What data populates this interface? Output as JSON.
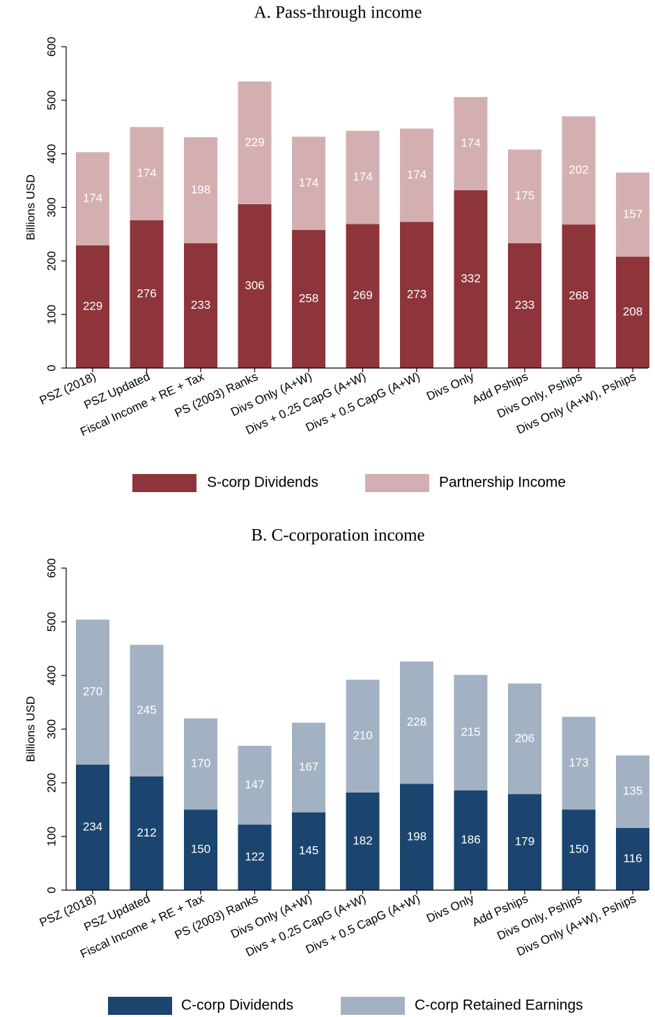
{
  "chart_data": [
    {
      "type": "bar",
      "stacked": true,
      "title": "A. Pass-through income",
      "y_label": "Billions USD",
      "categories": [
        "PSZ (2018)",
        "PSZ Updated",
        "Fiscal Income + RE + Tax",
        "PS (2003) Ranks",
        "Divs Only (A+W)",
        "Divs + 0.25 CapG (A+W)",
        "Divs + 0.5 CapG (A+W)",
        "Divs Only",
        "Add Pships",
        "Divs Only, Pships",
        "Divs Only (A+W), Pships"
      ],
      "series": [
        {
          "name": "S-corp Dividends",
          "color": "#8e353b",
          "values": [
            229,
            276,
            233,
            306,
            258,
            269,
            273,
            332,
            233,
            268,
            208
          ]
        },
        {
          "name": "Partnership Income",
          "color": "#d4afb1",
          "values": [
            174,
            174,
            198,
            229,
            174,
            174,
            174,
            174,
            175,
            202,
            157
          ]
        }
      ],
      "ylim": [
        0,
        600
      ],
      "yticks": [
        0,
        100,
        200,
        300,
        400,
        500,
        600
      ]
    },
    {
      "type": "bar",
      "stacked": true,
      "title": "B. C-corporation income",
      "y_label": "Billions USD",
      "categories": [
        "PSZ (2018)",
        "PSZ Updated",
        "Fiscal Income + RE + Tax",
        "PS (2003) Ranks",
        "Divs Only (A+W)",
        "Divs + 0.25 CapG (A+W)",
        "Divs + 0.5 CapG (A+W)",
        "Divs Only",
        "Add Pships",
        "Divs Only, Pships",
        "Divs Only (A+W), Pships"
      ],
      "series": [
        {
          "name": "C-corp Dividends",
          "color": "#1b456e",
          "values": [
            234,
            212,
            150,
            122,
            145,
            182,
            198,
            186,
            179,
            150,
            116
          ]
        },
        {
          "name": "C-corp Retained Earnings",
          "color": "#a3b2c3",
          "values": [
            270,
            245,
            170,
            147,
            167,
            210,
            228,
            215,
            206,
            173,
            135
          ]
        }
      ],
      "ylim": [
        0,
        600
      ],
      "yticks": [
        0,
        100,
        200,
        300,
        400,
        500,
        600
      ]
    }
  ]
}
